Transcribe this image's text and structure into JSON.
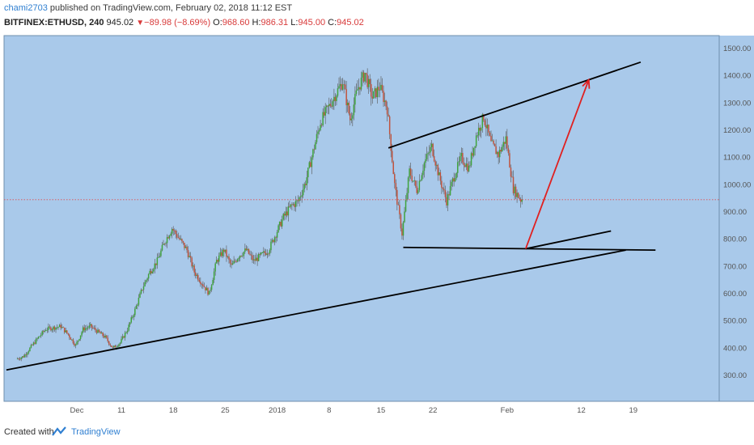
{
  "header": {
    "author": "chami2703",
    "published": "published on TradingView.com, February 02, 2018 11:12 EST",
    "symbol": "BITFINEX:ETHUSD, 240",
    "last": "945.02",
    "arrow": "▼",
    "change": "−89.98 (−8.69%)",
    "o_label": "O:",
    "o_value": "968.60",
    "h_label": "H:",
    "h_value": "986.31",
    "l_label": "L:",
    "l_value": "945.00",
    "c_label": "C:",
    "c_value": "945.02"
  },
  "footer": {
    "created_with": "Created with",
    "brand": "TradingView"
  },
  "colors": {
    "plot_bg": "#a9c9ea",
    "candle_up": "#3fa33c",
    "candle_down": "#c0533e",
    "wick": "#555555",
    "trendline": "#000000",
    "target_arrow": "#e02020",
    "last_price_line": "#e05050"
  },
  "chart_data": {
    "type": "candlestick",
    "symbol": "BITFINEX:ETHUSD",
    "interval": "240",
    "ylim": [
      250,
      1550
    ],
    "y_ticks": [
      "300.00",
      "400.00",
      "500.00",
      "600.00",
      "700.00",
      "800.00",
      "900.00",
      "1000.00",
      "1100.00",
      "1200.00",
      "1300.00",
      "1400.00",
      "1500.00"
    ],
    "x_ticks": [
      {
        "label": "Dec",
        "day": 5
      },
      {
        "label": "11",
        "day": 11
      },
      {
        "label": "18",
        "day": 18
      },
      {
        "label": "25",
        "day": 25
      },
      {
        "label": "2018",
        "day": 32
      },
      {
        "label": "8",
        "day": 39
      },
      {
        "label": "15",
        "day": 46
      },
      {
        "label": "22",
        "day": 53
      },
      {
        "label": "Feb",
        "day": 63
      },
      {
        "label": "12",
        "day": 73
      },
      {
        "label": "19",
        "day": 80
      }
    ],
    "x_note": "day axis: day 1 = 2017-11-27",
    "price_path": [
      [
        -3,
        360
      ],
      [
        -2,
        370
      ],
      [
        -1,
        405
      ],
      [
        0,
        440
      ],
      [
        1,
        470
      ],
      [
        2,
        475
      ],
      [
        3,
        480
      ],
      [
        4,
        450
      ],
      [
        5,
        410
      ],
      [
        6,
        470
      ],
      [
        7,
        480
      ],
      [
        8,
        460
      ],
      [
        9,
        440
      ],
      [
        10,
        400
      ],
      [
        11,
        420
      ],
      [
        12,
        470
      ],
      [
        13,
        540
      ],
      [
        14,
        620
      ],
      [
        15,
        680
      ],
      [
        16,
        720
      ],
      [
        17,
        790
      ],
      [
        18,
        840
      ],
      [
        19,
        800
      ],
      [
        20,
        760
      ],
      [
        21,
        680
      ],
      [
        22,
        640
      ],
      [
        23,
        600
      ],
      [
        24,
        720
      ],
      [
        25,
        760
      ],
      [
        26,
        700
      ],
      [
        27,
        740
      ],
      [
        28,
        760
      ],
      [
        29,
        720
      ],
      [
        30,
        740
      ],
      [
        31,
        760
      ],
      [
        32,
        820
      ],
      [
        33,
        880
      ],
      [
        34,
        920
      ],
      [
        35,
        940
      ],
      [
        36,
        1010
      ],
      [
        37,
        1120
      ],
      [
        38,
        1230
      ],
      [
        39,
        1280
      ],
      [
        40,
        1330
      ],
      [
        41,
        1380
      ],
      [
        42,
        1240
      ],
      [
        43,
        1350
      ],
      [
        44,
        1410
      ],
      [
        45,
        1320
      ],
      [
        46,
        1360
      ],
      [
        47,
        1280
      ],
      [
        48,
        1000
      ],
      [
        49,
        820
      ],
      [
        50,
        1050
      ],
      [
        51,
        980
      ],
      [
        52,
        1080
      ],
      [
        53,
        1140
      ],
      [
        54,
        1030
      ],
      [
        55,
        940
      ],
      [
        56,
        1030
      ],
      [
        57,
        1100
      ],
      [
        58,
        1060
      ],
      [
        59,
        1180
      ],
      [
        60,
        1250
      ],
      [
        61,
        1150
      ],
      [
        62,
        1110
      ],
      [
        63,
        1170
      ],
      [
        64,
        985
      ],
      [
        65,
        945
      ]
    ],
    "last_price": 945.02,
    "drawings": [
      {
        "type": "trendline",
        "from": [
          -4.5,
          320
        ],
        "to": [
          79,
          760
        ]
      },
      {
        "type": "trendline",
        "from": [
          49,
          770
        ],
        "to": [
          83,
          760
        ]
      },
      {
        "type": "trendline",
        "from": [
          65.5,
          765
        ],
        "to": [
          77,
          830
        ]
      },
      {
        "type": "trendline",
        "from": [
          47,
          1135
        ],
        "to": [
          81,
          1450
        ]
      },
      {
        "type": "arrow",
        "from": [
          65.5,
          765
        ],
        "to": [
          74,
          1385
        ]
      }
    ]
  }
}
